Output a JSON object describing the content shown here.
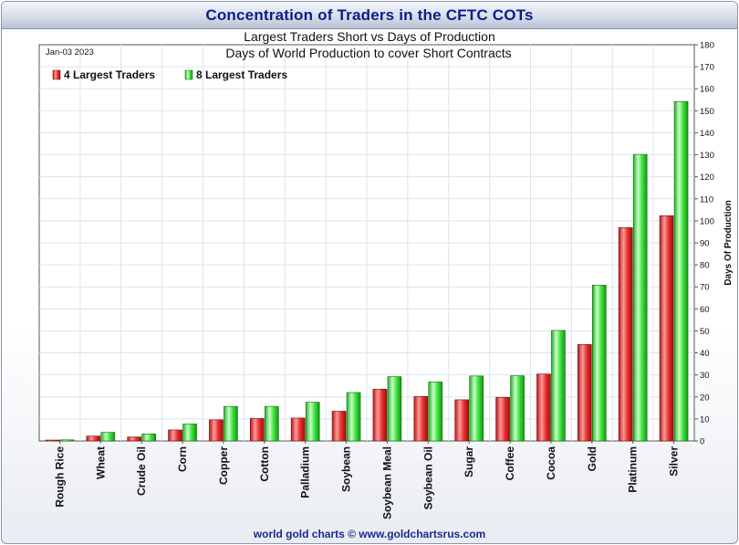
{
  "header": {
    "title": "Concentration of Traders in the CFTC COTs",
    "subtitle": "Largest Traders Short vs Days of Production"
  },
  "footer": {
    "credit": "world gold charts © www.goldchartsrus.com"
  },
  "colors": {
    "series_4": "#e02020",
    "series_8": "#2ed82e",
    "title_text": "#0d1c8a"
  },
  "chart_data": {
    "type": "bar",
    "title": "Days of World Production to cover Short Contracts",
    "date": "Jan-03  2023",
    "ylabel": "Days Of Production",
    "xlabel": "",
    "ylim": [
      0,
      180
    ],
    "ytick_step": 10,
    "grid": true,
    "legend_position": "top-left",
    "categories": [
      "Rough Rice",
      "Wheat",
      "Crude Oil",
      "Corn",
      "Copper",
      "Cotton",
      "Palladium",
      "Soybean",
      "Soybean Meal",
      "Soybean Oil",
      "Sugar",
      "Coffee",
      "Cocoa",
      "Gold",
      "Platinum",
      "Silver"
    ],
    "series": [
      {
        "name": "4 Largest Traders",
        "color": "#e02020",
        "values": [
          0.4,
          2.2,
          1.8,
          5,
          9.6,
          10.2,
          10.4,
          13.5,
          23.5,
          20.2,
          18.7,
          19.8,
          30.4,
          43.8,
          96.9,
          102.3
        ]
      },
      {
        "name": "8 Largest Traders",
        "color": "#2ed82e",
        "values": [
          0.5,
          3.9,
          3.2,
          7.7,
          15.7,
          15.7,
          17.6,
          22,
          29.2,
          26.8,
          29.5,
          29.6,
          50.2,
          70.8,
          130.2,
          154.2
        ]
      }
    ]
  }
}
